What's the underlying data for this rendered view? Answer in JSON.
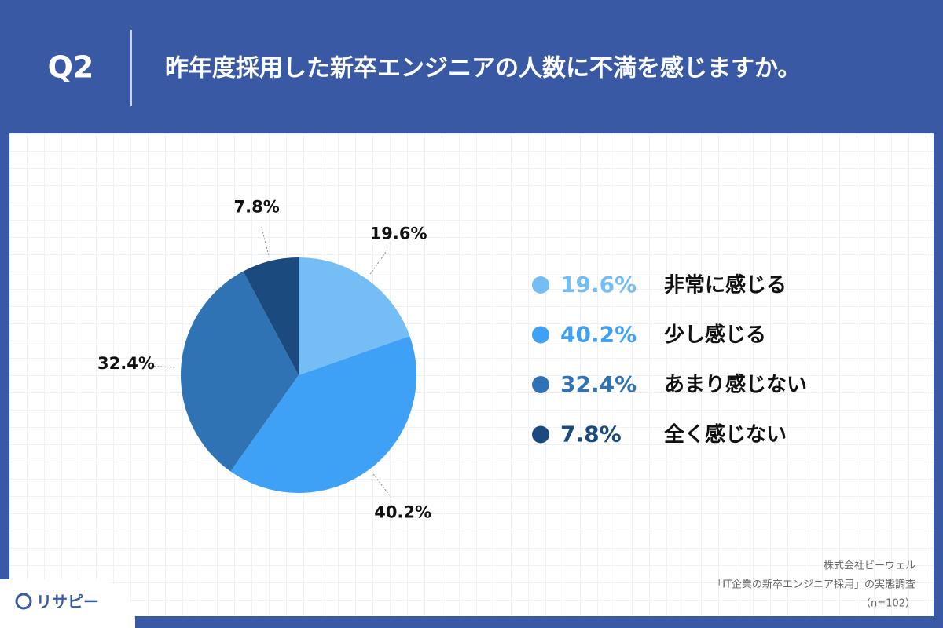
{
  "question": "Q2",
  "logo": "リサピー",
  "source": [
    "株式会社ビーウェル",
    "「IT企業の新卒エンジニア採用」の実態調査",
    "（n=102）"
  ],
  "chart_data": {
    "type": "pie",
    "title": "昨年度採用した新卒エンジニアの人数に不満を感じますか。",
    "categories": [
      "非常に感じる",
      "少し感じる",
      "あまり感じない",
      "全く感じない"
    ],
    "values": [
      19.6,
      40.2,
      32.4,
      7.8
    ],
    "value_labels": [
      "19.6%",
      "40.2%",
      "32.4%",
      "7.8%"
    ],
    "colors": [
      "#74bdf5",
      "#3fa1f5",
      "#2f73b5",
      "#1b4a7e"
    ],
    "legend": "right"
  }
}
